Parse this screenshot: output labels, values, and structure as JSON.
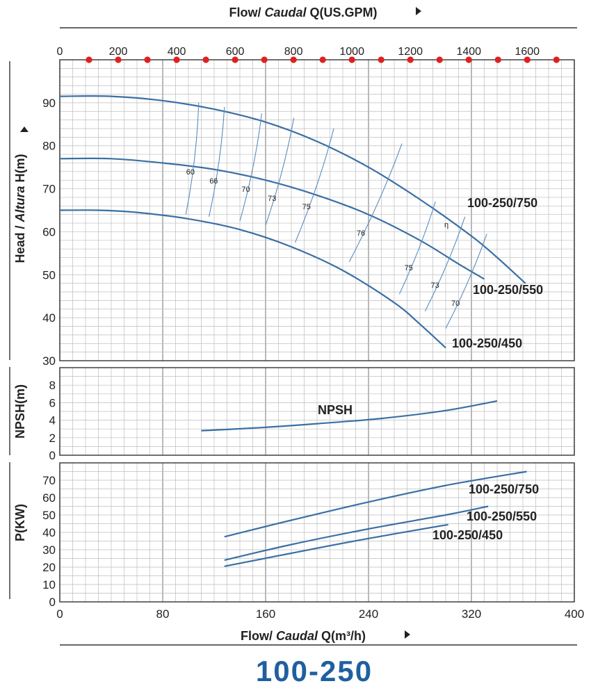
{
  "header": {
    "top_axis_title_prefix": "Flow/ ",
    "top_axis_title_italic": "Caudal",
    "top_axis_title_suffix": " Q(US.GPM)",
    "bottom_axis_title_prefix": "Flow/ ",
    "bottom_axis_title_italic": "Caudal",
    "bottom_axis_title_suffix": " Q(m³/h)",
    "model": "100-250"
  },
  "colors": {
    "curve": "#3a6fa5",
    "marker": "#e02020",
    "title": "#1f5fa0"
  },
  "chart_data": [
    {
      "type": "line",
      "title": "Head",
      "xlabel": "Flow/ Caudal Q(m³/h)",
      "ylabel_prefix": "Head / ",
      "ylabel_italic": "Altura",
      "ylabel_suffix": " H(m)",
      "xlim": [
        0,
        400
      ],
      "ylim": [
        30,
        100
      ],
      "y_ticks": [
        30,
        40,
        50,
        60,
        70,
        80,
        90
      ],
      "top_axis": {
        "label": "Q(US.GPM)",
        "ticks": [
          0,
          200,
          400,
          600,
          800,
          1000,
          1200,
          1400,
          1600
        ],
        "tick_labels": [
          "0",
          "200",
          "400",
          "600",
          "800",
          "1000",
          "1200",
          "1400",
          "1600"
        ],
        "markers": [
          100,
          200,
          300,
          400,
          500,
          600,
          700,
          800,
          900,
          1000,
          1100,
          1200,
          1300,
          1400,
          1500,
          1600,
          1700
        ]
      },
      "series": [
        {
          "name": "100-250/750",
          "x": [
            0,
            40,
            80,
            120,
            160,
            200,
            240,
            280,
            320,
            340,
            362
          ],
          "y": [
            91.5,
            91.5,
            90.5,
            88.5,
            85.5,
            81.0,
            75.0,
            67.5,
            59.0,
            54.0,
            48.0
          ]
        },
        {
          "name": "100-250/550",
          "x": [
            0,
            40,
            80,
            120,
            160,
            200,
            240,
            280,
            310,
            330
          ],
          "y": [
            77.0,
            77.0,
            76.0,
            74.5,
            72.0,
            68.5,
            64.0,
            58.0,
            52.5,
            49.0
          ]
        },
        {
          "name": "100-250/450",
          "x": [
            0,
            30,
            60,
            100,
            140,
            180,
            220,
            260,
            280,
            300
          ],
          "y": [
            65.0,
            65.0,
            64.5,
            63.0,
            60.5,
            56.5,
            51.0,
            43.5,
            38.5,
            33.0
          ]
        }
      ],
      "efficiency": {
        "symbol": "η",
        "lines": [
          {
            "label": "60",
            "x": [
              98,
              108
            ],
            "y": [
              64.0,
              90.0
            ]
          },
          {
            "label": "66",
            "x": [
              116,
              128
            ],
            "y": [
              63.5,
              89.0
            ]
          },
          {
            "label": "70",
            "x": [
              140,
              157
            ],
            "y": [
              62.5,
              87.5
            ]
          },
          {
            "label": "73",
            "x": [
              160,
              182
            ],
            "y": [
              61.5,
              86.5
            ]
          },
          {
            "label": "75",
            "x": [
              183,
              213
            ],
            "y": [
              57.5,
              84.0
            ]
          },
          {
            "label": "76",
            "x": [
              225,
              266
            ],
            "y": [
              53.0,
              80.5
            ]
          },
          {
            "label": "75",
            "x": [
              264,
              292
            ],
            "y": [
              45.5,
              67.0
            ]
          },
          {
            "label": "73",
            "x": [
              284,
              315
            ],
            "y": [
              41.5,
              63.5
            ]
          },
          {
            "label": "70",
            "x": [
              300,
              332
            ],
            "y": [
              37.5,
              59.5
            ]
          }
        ]
      }
    },
    {
      "type": "line",
      "title": "NPSH",
      "ylabel": "NPSH(m)",
      "xlim": [
        0,
        400
      ],
      "ylim": [
        0,
        10
      ],
      "y_ticks": [
        0,
        2,
        4,
        6,
        8
      ],
      "series": [
        {
          "name": "NPSH",
          "x": [
            110,
            150,
            200,
            250,
            300,
            340
          ],
          "y": [
            2.8,
            3.1,
            3.6,
            4.2,
            5.1,
            6.2
          ]
        }
      ]
    },
    {
      "type": "line",
      "title": "Power",
      "ylabel": "P(KW)",
      "xlim": [
        0,
        400
      ],
      "ylim": [
        0,
        80
      ],
      "y_ticks": [
        0,
        10,
        20,
        30,
        40,
        50,
        60,
        70
      ],
      "x_ticks": [
        0,
        80,
        160,
        240,
        320,
        400
      ],
      "series": [
        {
          "name": "100-250/750",
          "x": [
            128,
            180,
            240,
            300,
            363
          ],
          "y": [
            37.5,
            47.0,
            57.5,
            67.0,
            75.0
          ]
        },
        {
          "name": "100-250/550",
          "x": [
            128,
            180,
            240,
            300,
            333
          ],
          "y": [
            24.0,
            33.0,
            42.0,
            50.0,
            55.0
          ]
        },
        {
          "name": "100-250/450",
          "x": [
            128,
            180,
            240,
            302
          ],
          "y": [
            20.5,
            28.0,
            36.5,
            44.5
          ]
        }
      ]
    }
  ]
}
